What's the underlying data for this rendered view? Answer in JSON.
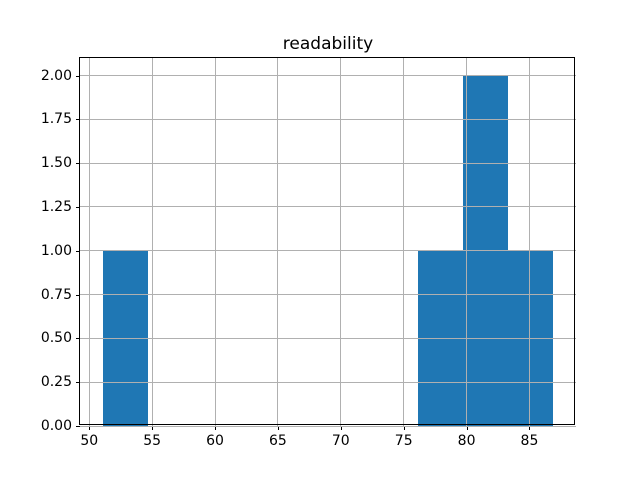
{
  "chart_data": {
    "type": "bar",
    "subtype": "histogram",
    "title": "readability",
    "bar_color": "#1f77b4",
    "grid_color": "#b0b0b0",
    "axis_color": "#000000",
    "background_color": "#ffffff",
    "grid": true,
    "legend": null,
    "xlabel": "",
    "ylabel": "",
    "bin_edges": [
      51.05,
      54.64,
      58.22,
      61.81,
      65.39,
      68.98,
      72.56,
      76.15,
      79.73,
      83.32,
      86.9
    ],
    "counts": [
      1,
      0,
      0,
      0,
      0,
      0,
      0,
      1,
      2,
      1
    ],
    "xlim": [
      49.26,
      88.7
    ],
    "ylim": [
      0,
      2.1
    ],
    "x_ticks": [
      {
        "value": 50,
        "label": "50"
      },
      {
        "value": 55,
        "label": "55"
      },
      {
        "value": 60,
        "label": "60"
      },
      {
        "value": 65,
        "label": "65"
      },
      {
        "value": 70,
        "label": "70"
      },
      {
        "value": 75,
        "label": "75"
      },
      {
        "value": 80,
        "label": "80"
      },
      {
        "value": 85,
        "label": "85"
      }
    ],
    "y_ticks": [
      {
        "value": 0.0,
        "label": "0.00"
      },
      {
        "value": 0.25,
        "label": "0.25"
      },
      {
        "value": 0.5,
        "label": "0.50"
      },
      {
        "value": 0.75,
        "label": "0.75"
      },
      {
        "value": 1.0,
        "label": "1.00"
      },
      {
        "value": 1.25,
        "label": "1.25"
      },
      {
        "value": 1.5,
        "label": "1.50"
      },
      {
        "value": 1.75,
        "label": "1.75"
      },
      {
        "value": 2.0,
        "label": "2.00"
      }
    ]
  }
}
